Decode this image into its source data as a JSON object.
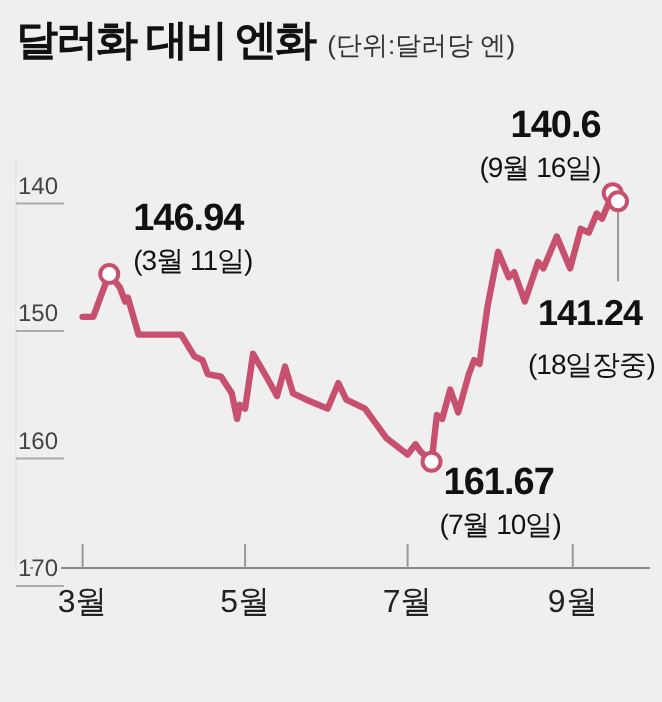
{
  "chart_data": {
    "type": "line",
    "title": "달러화 대비 엔화",
    "subtitle": "(단위:달러당 엔)",
    "x": [
      "--03-01",
      "--03-05",
      "--03-08",
      "--03-11",
      "--03-15",
      "--03-17",
      "--03-18",
      "--03-22",
      "--04-07",
      "--04-12",
      "--04-15",
      "--04-17",
      "--04-22",
      "--04-26",
      "--04-28",
      "--04-29",
      "--05-01",
      "--05-04",
      "--05-09",
      "--05-13",
      "--05-16",
      "--05-19",
      "--05-24",
      "--06-01",
      "--06-05",
      "--06-08",
      "--06-15",
      "--06-23",
      "--07-01",
      "--07-04",
      "--07-06",
      "--07-10",
      "--07-12",
      "--07-14",
      "--07-17",
      "--07-20",
      "--07-24",
      "--07-26",
      "--07-28",
      "--07-31",
      "--08-04",
      "--08-08",
      "--08-10",
      "--08-14",
      "--08-19",
      "--08-21",
      "--08-26",
      "--08-31",
      "--09-04",
      "--09-07",
      "--09-10",
      "--09-12",
      "--09-16",
      "--09-18"
    ],
    "series": [
      {
        "color": "#c8506f",
        "values": [
          150.3,
          150.3,
          148.6,
          146.94,
          148,
          149.1,
          148.8,
          151.7,
          151.7,
          153.4,
          153.7,
          154.8,
          155,
          156.3,
          158.3,
          157.2,
          157.5,
          153.2,
          155,
          156.5,
          154.2,
          156.3,
          156.8,
          157.5,
          155.5,
          156.8,
          157.5,
          159.8,
          161.1,
          160.3,
          160.9,
          161.67,
          158,
          158.3,
          156,
          157.8,
          154.8,
          153.7,
          154,
          149.5,
          145.2,
          147.2,
          146.8,
          149.1,
          146,
          146.5,
          144,
          146.5,
          143.4,
          143.7,
          142.2,
          142.6,
          140.6,
          141.24
        ]
      }
    ],
    "xlim": [
      "--02-05",
      "--09-30"
    ],
    "xticks": [
      {
        "value": "--03-01",
        "label": "3월"
      },
      {
        "value": "--05-01",
        "label": "5월"
      },
      {
        "value": "--07-01",
        "label": "7월"
      },
      {
        "value": "--09-01",
        "label": "9월"
      }
    ],
    "ylim": [
      170,
      138
    ],
    "yticks": [
      140,
      150,
      160,
      170
    ],
    "marker": "none",
    "line_style": "solid",
    "annotations": [
      {
        "text": "146.94",
        "x": "--03-11",
        "y": 146.94
      },
      {
        "text": "(3월 11일)",
        "x": "--03-11",
        "y": 146.94
      },
      {
        "text": "140.6",
        "x": "--09-16",
        "y": 140.6
      },
      {
        "text": "(9월 16일)",
        "x": "--09-16",
        "y": 140.6
      },
      {
        "text": "141.24",
        "x": "--09-18",
        "y": 141.24
      },
      "(18일장중)",
      {
        "text": "161.67",
        "x": "--07-10",
        "y": 161.67
      },
      {
        "text": "(7월 10일)",
        "x": "--07-10",
        "y": 161.67
      }
    ]
  }
}
